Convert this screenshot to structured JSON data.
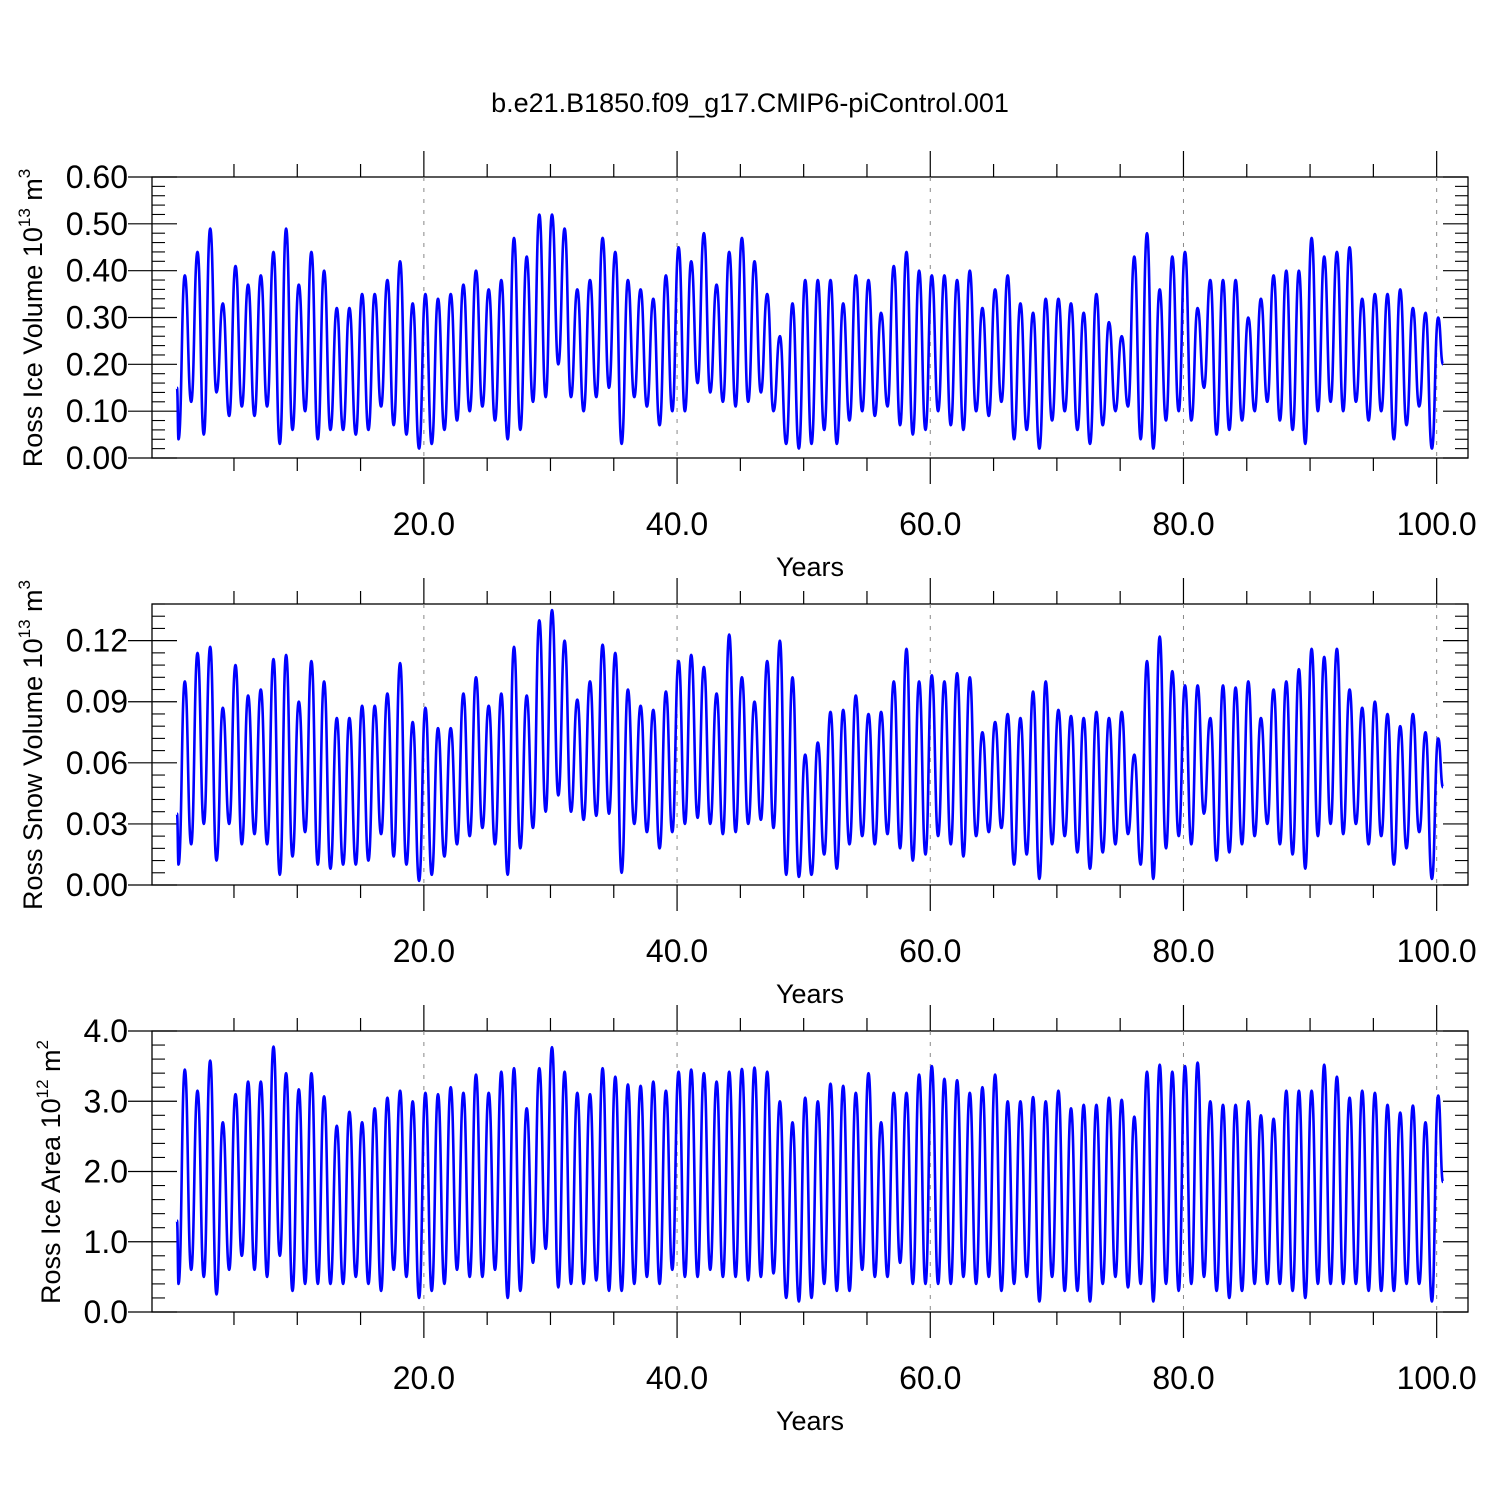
{
  "figure": {
    "title": "b.e21.B1850.f09_g17.CMIP6-piControl.001",
    "line_color": "#0000ff",
    "grid_color": "#888888"
  },
  "chart_data": [
    {
      "type": "line",
      "ylabel_main": "Ross Ice Volume 10",
      "ylabel_sup": "13",
      "ylabel_unit": " m",
      "ylabel_unit_sup": "3",
      "xlabel": "Years",
      "xlim": [
        0.5,
        100.5
      ],
      "ylim": [
        0.0,
        0.6
      ],
      "xticks": [
        20,
        40,
        60,
        80,
        100
      ],
      "xtick_labels": [
        "20.0",
        "40.0",
        "60.0",
        "80.0",
        "100.0"
      ],
      "yticks": [
        0.0,
        0.1,
        0.2,
        0.3,
        0.4,
        0.5,
        0.6
      ],
      "ytick_labels": [
        "0.00",
        "0.10",
        "0.20",
        "0.30",
        "0.40",
        "0.50",
        "0.60"
      ],
      "grid": "vertical dashed at major x ticks",
      "series": [
        {
          "x_start": 0.5,
          "x_step": 1,
          "min": [
            0.04,
            0.12,
            0.05,
            0.14,
            0.09,
            0.11,
            0.09,
            0.11,
            0.03,
            0.06,
            0.1,
            0.04,
            0.06,
            0.06,
            0.05,
            0.06,
            0.11,
            0.07,
            0.05,
            0.02,
            0.03,
            0.06,
            0.08,
            0.1,
            0.11,
            0.08,
            0.04,
            0.06,
            0.12,
            0.13,
            0.2,
            0.13,
            0.1,
            0.13,
            0.15,
            0.03,
            0.13,
            0.11,
            0.07,
            0.1,
            0.1,
            0.16,
            0.14,
            0.12,
            0.11,
            0.12,
            0.14,
            0.1,
            0.03,
            0.02,
            0.03,
            0.06,
            0.03,
            0.08,
            0.1,
            0.09,
            0.11,
            0.07,
            0.05,
            0.06,
            0.1,
            0.07,
            0.06,
            0.1,
            0.09,
            0.12,
            0.04,
            0.06,
            0.02,
            0.08,
            0.1,
            0.06,
            0.03,
            0.07,
            0.1,
            0.11,
            0.04,
            0.02,
            0.08,
            0.1,
            0.08,
            0.15,
            0.05,
            0.06,
            0.08,
            0.1,
            0.12,
            0.08,
            0.06,
            0.03,
            0.1,
            0.12,
            0.1,
            0.12,
            0.08,
            0.1,
            0.04,
            0.07,
            0.11,
            0.02
          ],
          "max": [
            0.39,
            0.44,
            0.49,
            0.33,
            0.41,
            0.37,
            0.39,
            0.44,
            0.49,
            0.37,
            0.44,
            0.4,
            0.32,
            0.32,
            0.35,
            0.35,
            0.38,
            0.42,
            0.33,
            0.35,
            0.34,
            0.35,
            0.37,
            0.4,
            0.36,
            0.38,
            0.47,
            0.43,
            0.52,
            0.52,
            0.49,
            0.36,
            0.38,
            0.47,
            0.44,
            0.38,
            0.36,
            0.34,
            0.39,
            0.45,
            0.42,
            0.48,
            0.37,
            0.44,
            0.47,
            0.42,
            0.35,
            0.26,
            0.33,
            0.38,
            0.38,
            0.38,
            0.33,
            0.39,
            0.38,
            0.31,
            0.41,
            0.44,
            0.4,
            0.39,
            0.39,
            0.38,
            0.4,
            0.32,
            0.36,
            0.39,
            0.33,
            0.31,
            0.34,
            0.34,
            0.33,
            0.31,
            0.35,
            0.29,
            0.26,
            0.43,
            0.48,
            0.36,
            0.43,
            0.44,
            0.32,
            0.38,
            0.38,
            0.38,
            0.3,
            0.34,
            0.39,
            0.4,
            0.4,
            0.47,
            0.43,
            0.44,
            0.45,
            0.34,
            0.35,
            0.35,
            0.36,
            0.32,
            0.31,
            0.3
          ],
          "start": 0.15,
          "end": 0.2
        }
      ]
    },
    {
      "type": "line",
      "ylabel_main": "Ross Snow Volume 10",
      "ylabel_sup": "13",
      "ylabel_unit": " m",
      "ylabel_unit_sup": "3",
      "xlabel": "Years",
      "xlim": [
        0.5,
        100.5
      ],
      "ylim": [
        0.0,
        0.138
      ],
      "xticks": [
        20,
        40,
        60,
        80,
        100
      ],
      "xtick_labels": [
        "20.0",
        "40.0",
        "60.0",
        "80.0",
        "100.0"
      ],
      "yticks": [
        0.0,
        0.03,
        0.06,
        0.09,
        0.12
      ],
      "ytick_labels": [
        "0.00",
        "0.03",
        "0.06",
        "0.09",
        "0.12"
      ],
      "grid": "vertical dashed at major x ticks",
      "series": [
        {
          "x_start": 0.5,
          "x_step": 1,
          "min": [
            0.01,
            0.02,
            0.03,
            0.012,
            0.03,
            0.02,
            0.025,
            0.02,
            0.005,
            0.014,
            0.026,
            0.01,
            0.008,
            0.01,
            0.01,
            0.012,
            0.025,
            0.014,
            0.01,
            0.002,
            0.005,
            0.014,
            0.02,
            0.024,
            0.028,
            0.02,
            0.005,
            0.018,
            0.028,
            0.036,
            0.044,
            0.036,
            0.032,
            0.034,
            0.035,
            0.006,
            0.03,
            0.026,
            0.018,
            0.026,
            0.03,
            0.033,
            0.03,
            0.025,
            0.026,
            0.03,
            0.032,
            0.028,
            0.005,
            0.004,
            0.005,
            0.015,
            0.008,
            0.02,
            0.024,
            0.02,
            0.025,
            0.018,
            0.012,
            0.015,
            0.024,
            0.02,
            0.014,
            0.024,
            0.026,
            0.028,
            0.01,
            0.015,
            0.003,
            0.02,
            0.024,
            0.016,
            0.008,
            0.016,
            0.02,
            0.025,
            0.01,
            0.003,
            0.018,
            0.024,
            0.02,
            0.035,
            0.012,
            0.016,
            0.02,
            0.024,
            0.03,
            0.02,
            0.015,
            0.008,
            0.024,
            0.03,
            0.025,
            0.03,
            0.02,
            0.024,
            0.01,
            0.018,
            0.026,
            0.003
          ],
          "max": [
            0.1,
            0.114,
            0.117,
            0.087,
            0.108,
            0.093,
            0.096,
            0.111,
            0.113,
            0.09,
            0.11,
            0.1,
            0.082,
            0.082,
            0.088,
            0.088,
            0.094,
            0.109,
            0.08,
            0.087,
            0.077,
            0.077,
            0.094,
            0.102,
            0.088,
            0.094,
            0.117,
            0.093,
            0.13,
            0.135,
            0.12,
            0.091,
            0.1,
            0.118,
            0.114,
            0.096,
            0.088,
            0.086,
            0.095,
            0.11,
            0.113,
            0.107,
            0.094,
            0.123,
            0.102,
            0.09,
            0.11,
            0.12,
            0.102,
            0.064,
            0.07,
            0.085,
            0.086,
            0.093,
            0.084,
            0.085,
            0.1,
            0.116,
            0.1,
            0.103,
            0.1,
            0.104,
            0.102,
            0.075,
            0.08,
            0.084,
            0.082,
            0.095,
            0.1,
            0.086,
            0.083,
            0.082,
            0.085,
            0.082,
            0.085,
            0.064,
            0.11,
            0.122,
            0.105,
            0.098,
            0.098,
            0.082,
            0.098,
            0.097,
            0.1,
            0.082,
            0.096,
            0.1,
            0.106,
            0.116,
            0.112,
            0.116,
            0.096,
            0.087,
            0.09,
            0.084,
            0.078,
            0.084,
            0.075,
            0.072
          ],
          "start": 0.035,
          "end": 0.048
        }
      ]
    },
    {
      "type": "line",
      "ylabel_main": "Ross Ice Area 10",
      "ylabel_sup": "12",
      "ylabel_unit": " m",
      "ylabel_unit_sup": "2",
      "xlabel": "Years",
      "xlim": [
        0.5,
        100.5
      ],
      "ylim": [
        0.0,
        4.0
      ],
      "xticks": [
        20,
        40,
        60,
        80,
        100
      ],
      "xtick_labels": [
        "20.0",
        "40.0",
        "60.0",
        "80.0",
        "100.0"
      ],
      "yticks": [
        0.0,
        1.0,
        2.0,
        3.0,
        4.0
      ],
      "ytick_labels": [
        "0.0",
        "1.0",
        "2.0",
        "3.0",
        "4.0"
      ],
      "grid": "vertical dashed at major x ticks",
      "series": [
        {
          "x_start": 0.5,
          "x_step": 1,
          "min": [
            0.4,
            0.6,
            0.5,
            0.25,
            0.6,
            0.8,
            0.6,
            0.5,
            0.8,
            0.3,
            0.4,
            0.4,
            0.4,
            0.4,
            0.5,
            0.4,
            0.3,
            0.6,
            0.5,
            0.2,
            0.3,
            0.4,
            0.6,
            0.5,
            0.5,
            0.6,
            0.2,
            0.3,
            0.7,
            0.9,
            0.35,
            0.4,
            0.4,
            0.45,
            0.3,
            0.3,
            0.4,
            0.5,
            0.4,
            0.6,
            0.5,
            0.5,
            0.6,
            0.5,
            0.5,
            0.45,
            0.5,
            0.55,
            0.2,
            0.15,
            0.2,
            0.4,
            0.3,
            0.3,
            0.6,
            0.5,
            0.5,
            0.7,
            0.4,
            0.4,
            0.4,
            0.4,
            0.5,
            0.4,
            0.5,
            0.3,
            0.4,
            0.5,
            0.15,
            0.5,
            0.3,
            0.3,
            0.15,
            0.4,
            0.5,
            0.35,
            0.4,
            0.15,
            0.4,
            0.3,
            0.4,
            0.5,
            0.3,
            0.2,
            0.3,
            0.4,
            0.4,
            0.4,
            0.3,
            0.2,
            0.4,
            0.4,
            0.4,
            0.4,
            0.3,
            0.3,
            0.3,
            0.4,
            0.4,
            0.15
          ],
          "max": [
            3.45,
            3.15,
            3.58,
            2.7,
            3.1,
            3.28,
            3.28,
            3.78,
            3.4,
            3.17,
            3.4,
            3.07,
            2.65,
            2.85,
            2.7,
            2.9,
            3.05,
            3.15,
            3.0,
            3.12,
            3.1,
            3.2,
            3.12,
            3.38,
            3.12,
            3.42,
            3.47,
            2.9,
            3.47,
            3.77,
            3.42,
            3.12,
            3.1,
            3.47,
            3.35,
            3.24,
            3.22,
            3.28,
            3.15,
            3.42,
            3.45,
            3.4,
            3.28,
            3.42,
            3.46,
            3.48,
            3.42,
            3.0,
            2.7,
            3.05,
            3.0,
            3.25,
            3.22,
            3.12,
            3.4,
            2.7,
            3.12,
            3.12,
            3.38,
            3.5,
            3.32,
            3.3,
            3.12,
            3.2,
            3.38,
            3.0,
            3.0,
            3.06,
            3.0,
            3.15,
            2.9,
            2.95,
            2.95,
            3.05,
            3.02,
            2.78,
            3.42,
            3.52,
            3.42,
            3.5,
            3.55,
            3.0,
            2.95,
            2.95,
            3.0,
            2.8,
            2.75,
            3.15,
            3.15,
            3.15,
            3.52,
            3.35,
            3.05,
            3.15,
            3.12,
            2.95,
            2.84,
            2.94,
            2.7,
            3.08
          ],
          "start": 1.3,
          "end": 1.85
        }
      ]
    }
  ]
}
